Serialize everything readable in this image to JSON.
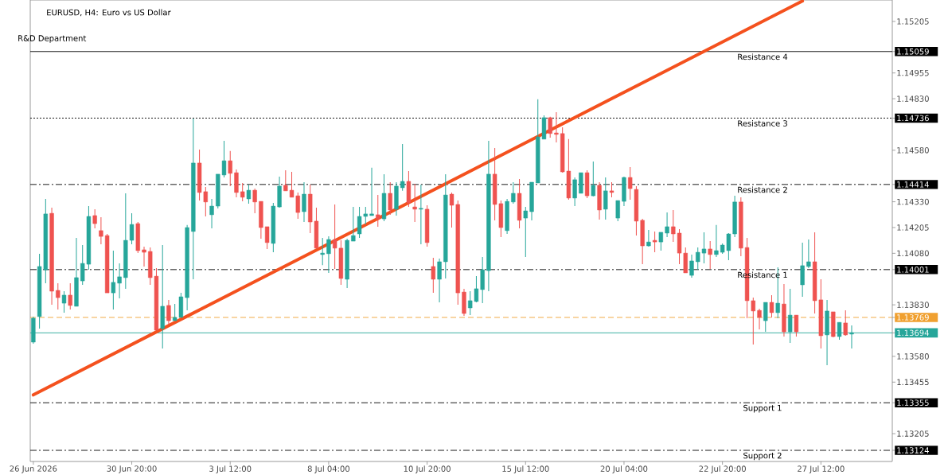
{
  "chart_data": {
    "type": "candlestick",
    "title": "EURUSD, H4: Euro vs US Dollar",
    "subtitle": "R&D Department",
    "categories": [
      "26 Jun 2026",
      null,
      null,
      null,
      null,
      null,
      null,
      null,
      null,
      null,
      null,
      null,
      null,
      null,
      null,
      null,
      "30 Jun 20:00",
      null,
      null,
      null,
      null,
      null,
      null,
      null,
      null,
      null,
      null,
      null,
      null,
      null,
      null,
      null,
      "3 Jul 12:00",
      null,
      null,
      null,
      null,
      null,
      null,
      null,
      null,
      null,
      null,
      null,
      null,
      null,
      null,
      null,
      "8 Jul 04:00",
      null,
      null,
      null,
      null,
      null,
      null,
      null,
      null,
      null,
      null,
      null,
      null,
      null,
      null,
      null,
      "10 Jul 20:00",
      null,
      null,
      null,
      null,
      null,
      null,
      null,
      null,
      null,
      null,
      null,
      null,
      null,
      null,
      null,
      "15 Jul 12:00",
      null,
      null,
      null,
      null,
      null,
      null,
      null,
      null,
      null,
      null,
      null,
      null,
      null,
      null,
      null,
      "20 Jul 04:00",
      null,
      null,
      null,
      null,
      null,
      null,
      null,
      null,
      null,
      null,
      null,
      null,
      null,
      null,
      null,
      "22 Jul 20:00",
      null,
      null,
      null,
      null,
      null,
      null,
      null,
      null,
      null,
      null,
      null,
      null,
      null,
      null,
      null,
      "27 Jul 12:00",
      null,
      null,
      null,
      null,
      null
    ],
    "ohlc": [
      [
        1.13649,
        1.13773,
        1.13641,
        1.13765
      ],
      [
        1.13773,
        1.14078,
        1.13715,
        1.14016
      ],
      [
        1.14,
        1.14344,
        1.13935,
        1.14271
      ],
      [
        1.14274,
        1.14301,
        1.1383,
        1.13896
      ],
      [
        1.139,
        1.13935,
        1.13807,
        1.13865
      ],
      [
        1.13838,
        1.13896,
        1.13792,
        1.13877
      ],
      [
        1.13877,
        1.13935,
        1.13807,
        1.13827
      ],
      [
        1.13823,
        1.14155,
        1.13823,
        1.13962
      ],
      [
        1.13946,
        1.1412,
        1.13927,
        1.14031
      ],
      [
        1.14027,
        1.14309,
        1.14,
        1.14259
      ],
      [
        1.14263,
        1.14294,
        1.14201,
        1.14224
      ],
      [
        1.1419,
        1.14255,
        1.14124,
        1.14162
      ],
      [
        1.14166,
        1.14174,
        1.13888,
        1.13888
      ],
      [
        1.13888,
        1.14093,
        1.13807,
        1.13939
      ],
      [
        1.13935,
        1.14031,
        1.13861,
        1.13966
      ],
      [
        1.13962,
        1.14371,
        1.13908,
        1.14143
      ],
      [
        1.14143,
        1.14274,
        1.14124,
        1.1422
      ],
      [
        1.14224,
        1.14232,
        1.14081,
        1.14093
      ],
      [
        1.14097,
        1.14112,
        1.14016,
        1.14085
      ],
      [
        1.14089,
        1.14108,
        1.13927,
        1.13962
      ],
      [
        1.13969,
        1.14008,
        1.13707,
        1.13707
      ],
      [
        1.13715,
        1.1412,
        1.13618,
        1.13823
      ],
      [
        1.13827,
        1.13854,
        1.13734,
        1.13753
      ],
      [
        1.13753,
        1.13834,
        1.13753,
        1.13769
      ],
      [
        1.13769,
        1.13888,
        1.13769,
        1.13869
      ],
      [
        1.13865,
        1.14217,
        1.13803,
        1.14205
      ],
      [
        1.14186,
        1.14734,
        1.13954,
        1.14518
      ],
      [
        1.14518,
        1.14583,
        1.14336,
        1.14375
      ],
      [
        1.14379,
        1.14402,
        1.14259,
        1.14329
      ],
      [
        1.14267,
        1.14344,
        1.14201,
        1.14309
      ],
      [
        1.14309,
        1.14464,
        1.14298,
        1.14464
      ],
      [
        1.1446,
        1.14626,
        1.14448,
        1.14529
      ],
      [
        1.14529,
        1.14576,
        1.14406,
        1.14468
      ],
      [
        1.14471,
        1.14487,
        1.14352,
        1.14375
      ],
      [
        1.14379,
        1.14421,
        1.14332,
        1.14352
      ],
      [
        1.14344,
        1.14413,
        1.14321,
        1.14386
      ],
      [
        1.14386,
        1.14394,
        1.14274,
        1.14329
      ],
      [
        1.14332,
        1.14332,
        1.14151,
        1.14205
      ],
      [
        1.14209,
        1.14209,
        1.14101,
        1.14132
      ],
      [
        1.14128,
        1.14325,
        1.14085,
        1.14309
      ],
      [
        1.14305,
        1.14452,
        1.14301,
        1.14406
      ],
      [
        1.1441,
        1.14483,
        1.14383,
        1.14383
      ],
      [
        1.14386,
        1.14475,
        1.14352,
        1.14352
      ],
      [
        1.14359,
        1.14375,
        1.14247,
        1.14278
      ],
      [
        1.14282,
        1.14425,
        1.14232,
        1.14367
      ],
      [
        1.14367,
        1.14413,
        1.14178,
        1.14232
      ],
      [
        1.14236,
        1.14301,
        1.14105,
        1.14105
      ],
      [
        1.14074,
        1.14155,
        1.14023,
        1.14081
      ],
      [
        1.14078,
        1.14162,
        1.13985,
        1.14147
      ],
      [
        1.14147,
        1.14317,
        1.14004,
        1.14105
      ],
      [
        1.14105,
        1.14143,
        1.13927,
        1.13958
      ],
      [
        1.13954,
        1.14151,
        1.13912,
        1.14143
      ],
      [
        1.14139,
        1.14305,
        1.14139,
        1.14166
      ],
      [
        1.14174,
        1.14305,
        1.14155,
        1.14259
      ],
      [
        1.14259,
        1.14305,
        1.1422,
        1.14271
      ],
      [
        1.14263,
        1.14495,
        1.14263,
        1.14271
      ],
      [
        1.14267,
        1.14363,
        1.14209,
        1.14247
      ],
      [
        1.14247,
        1.14464,
        1.14236,
        1.14371
      ],
      [
        1.14371,
        1.14425,
        1.14267,
        1.1429
      ],
      [
        1.14294,
        1.14425,
        1.14263,
        1.14406
      ],
      [
        1.14398,
        1.1461,
        1.14383,
        1.14429
      ],
      [
        1.14429,
        1.14479,
        1.14305,
        1.14325
      ],
      [
        1.14305,
        1.14417,
        1.14232,
        1.14294
      ],
      [
        1.14294,
        1.14413,
        1.14124,
        1.14298
      ],
      [
        1.14294,
        1.14313,
        1.14112,
        1.14132
      ],
      [
        1.14016,
        1.14058,
        1.13888,
        1.13954
      ],
      [
        1.13954,
        1.14054,
        1.13842,
        1.14039
      ],
      [
        1.14039,
        1.14464,
        1.13958,
        1.14363
      ],
      [
        1.14367,
        1.14375,
        1.14205,
        1.14313
      ],
      [
        1.14317,
        1.14336,
        1.1383,
        1.13888
      ],
      [
        1.13892,
        1.13908,
        1.13776,
        1.13788
      ],
      [
        1.13815,
        1.13896,
        1.1378,
        1.1385
      ],
      [
        1.13846,
        1.13969,
        1.13842,
        1.13908
      ],
      [
        1.13904,
        1.14062,
        1.13838,
        1.14
      ],
      [
        1.13996,
        1.14626,
        1.13896,
        1.14464
      ],
      [
        1.14464,
        1.14591,
        1.1424,
        1.14317
      ],
      [
        1.14321,
        1.14336,
        1.14159,
        1.14205
      ],
      [
        1.1419,
        1.14344,
        1.14174,
        1.14332
      ],
      [
        1.14329,
        1.14425,
        1.14321,
        1.14371
      ],
      [
        1.14371,
        1.1444,
        1.14201,
        1.1424
      ],
      [
        1.14251,
        1.14305,
        1.14062,
        1.14286
      ],
      [
        1.14282,
        1.14425,
        1.1424,
        1.14425
      ],
      [
        1.14421,
        1.14827,
        1.14421,
        1.14645
      ],
      [
        1.14634,
        1.14749,
        1.14634,
        1.14738
      ],
      [
        1.14738,
        1.14742,
        1.14641,
        1.14661
      ],
      [
        1.14664,
        1.14765,
        1.14618,
        1.14657
      ],
      [
        1.14661,
        1.14691,
        1.14471,
        1.14475
      ],
      [
        1.14479,
        1.14634,
        1.1434,
        1.14348
      ],
      [
        1.14348,
        1.14448,
        1.14309,
        1.14437
      ],
      [
        1.14371,
        1.14471,
        1.14371,
        1.14471
      ],
      [
        1.14471,
        1.14483,
        1.14348,
        1.14359
      ],
      [
        1.14359,
        1.14525,
        1.14356,
        1.1441
      ],
      [
        1.1441,
        1.14425,
        1.14244,
        1.1429
      ],
      [
        1.14294,
        1.14448,
        1.14244,
        1.14383
      ],
      [
        1.14383,
        1.14425,
        1.14352,
        1.14375
      ],
      [
        1.14251,
        1.14336,
        1.14236,
        1.14336
      ],
      [
        1.14332,
        1.14452,
        1.14309,
        1.14448
      ],
      [
        1.14448,
        1.14498,
        1.1434,
        1.14394
      ],
      [
        1.1439,
        1.14406,
        1.14166,
        1.14236
      ],
      [
        1.1424,
        1.14247,
        1.14027,
        1.14116
      ],
      [
        1.14116,
        1.14193,
        1.14112,
        1.14135
      ],
      [
        1.14143,
        1.14186,
        1.14085,
        1.14135
      ],
      [
        1.14135,
        1.14182,
        1.14093,
        1.14182
      ],
      [
        1.14178,
        1.14278,
        1.14159,
        1.14209
      ],
      [
        1.14209,
        1.1429,
        1.14135,
        1.14174
      ],
      [
        1.14178,
        1.14197,
        1.14027,
        1.14081
      ],
      [
        1.14081,
        1.14108,
        1.13985,
        1.13985
      ],
      [
        1.13973,
        1.14074,
        1.13962,
        1.14043
      ],
      [
        1.14039,
        1.14108,
        1.14,
        1.14085
      ],
      [
        1.14081,
        1.14182,
        1.14031,
        1.14101
      ],
      [
        1.14101,
        1.14139,
        1.14004,
        1.14074
      ],
      [
        1.14074,
        1.14217,
        1.14062,
        1.14093
      ],
      [
        1.14085,
        1.14128,
        1.14078,
        1.1412
      ],
      [
        1.14093,
        1.14178,
        1.14047,
        1.14174
      ],
      [
        1.14174,
        1.14359,
        1.14159,
        1.14329
      ],
      [
        1.14329,
        1.14352,
        1.14066,
        1.14105
      ],
      [
        1.14108,
        1.14155,
        1.13765,
        1.1385
      ],
      [
        1.1385,
        1.13865,
        1.13637,
        1.138
      ],
      [
        1.13803,
        1.13811,
        1.13711,
        1.13769
      ],
      [
        1.13753,
        1.13842,
        1.13699,
        1.13842
      ],
      [
        1.13842,
        1.13877,
        1.13769,
        1.13792
      ],
      [
        1.13792,
        1.14012,
        1.13765,
        1.13838
      ],
      [
        1.13834,
        1.13931,
        1.13676,
        1.13699
      ],
      [
        1.13699,
        1.13908,
        1.13645,
        1.1378
      ],
      [
        1.1378,
        1.1378,
        1.13676,
        1.13699
      ],
      [
        1.13927,
        1.14132,
        1.13869,
        1.1402
      ],
      [
        1.14016,
        1.14147,
        1.14008,
        1.14039
      ],
      [
        1.14039,
        1.14182,
        1.13788,
        1.1385
      ],
      [
        1.13854,
        1.13954,
        1.13618,
        1.1368
      ],
      [
        1.13684,
        1.13854,
        1.13537,
        1.138
      ],
      [
        1.13796,
        1.13796,
        1.13672,
        1.13676
      ],
      [
        1.13676,
        1.13745,
        1.13661,
        1.13745
      ],
      [
        1.13742,
        1.13803,
        1.1368,
        1.13684
      ],
      [
        1.13688,
        1.1373,
        1.13618,
        1.13695
      ]
    ],
    "colors": [
      "#26a69a",
      "#26a69a",
      "#26a69a",
      "#ef5350",
      "#ef5350",
      "#26a69a",
      "#ef5350",
      "#26a69a",
      "#26a69a",
      "#26a69a",
      "#ef5350",
      "#ef5350",
      "#ef5350",
      "#26a69a",
      "#26a69a",
      "#26a69a",
      "#26a69a",
      "#ef5350",
      "#ef5350",
      "#ef5350",
      "#ef5350",
      "#26a69a",
      "#ef5350",
      "#26a69a",
      "#26a69a",
      "#26a69a",
      "#26a69a",
      "#ef5350",
      "#ef5350",
      "#26a69a",
      "#26a69a",
      "#26a69a",
      "#ef5350",
      "#ef5350",
      "#ef5350",
      "#26a69a",
      "#ef5350",
      "#ef5350",
      "#ef5350",
      "#26a69a",
      "#26a69a",
      "#ef5350",
      "#ef5350",
      "#ef5350",
      "#26a69a",
      "#ef5350",
      "#ef5350",
      "#26a69a",
      "#26a69a",
      "#ef5350",
      "#ef5350",
      "#26a69a",
      "#26a69a",
      "#26a69a",
      "#26a69a",
      "#26a69a",
      "#ef5350",
      "#26a69a",
      "#ef5350",
      "#26a69a",
      "#26a69a",
      "#ef5350",
      "#ef5350",
      "#26a69a",
      "#ef5350",
      "#ef5350",
      "#26a69a",
      "#26a69a",
      "#ef5350",
      "#ef5350",
      "#ef5350",
      "#26a69a",
      "#26a69a",
      "#26a69a",
      "#26a69a",
      "#ef5350",
      "#ef5350",
      "#26a69a",
      "#26a69a",
      "#ef5350",
      "#26a69a",
      "#26a69a",
      "#26a69a",
      "#26a69a",
      "#ef5350",
      "#ef5350",
      "#ef5350",
      "#ef5350",
      "#26a69a",
      "#26a69a",
      "#ef5350",
      "#26a69a",
      "#ef5350",
      "#26a69a",
      "#ef5350",
      "#26a69a",
      "#26a69a",
      "#ef5350",
      "#ef5350",
      "#ef5350",
      "#26a69a",
      "#ef5350",
      "#26a69a",
      "#26a69a",
      "#ef5350",
      "#ef5350",
      "#ef5350",
      "#26a69a",
      "#26a69a",
      "#26a69a",
      "#ef5350",
      "#26a69a",
      "#26a69a",
      "#26a69a",
      "#26a69a",
      "#ef5350",
      "#ef5350",
      "#ef5350",
      "#ef5350",
      "#26a69a",
      "#ef5350",
      "#26a69a",
      "#ef5350",
      "#26a69a",
      "#ef5350",
      "#26a69a",
      "#26a69a",
      "#ef5350",
      "#ef5350",
      "#26a69a",
      "#ef5350",
      "#26a69a",
      "#ef5350",
      "#26a69a"
    ],
    "series": [
      {
        "type": "line",
        "color": "#f4511e",
        "values": [
          1.13393,
          null,
          null,
          null,
          null,
          null,
          null,
          null,
          null,
          null,
          null,
          null,
          null,
          null,
          null,
          null,
          null,
          null,
          null,
          null,
          null,
          null,
          null,
          null,
          null,
          1.13775,
          null,
          null,
          null,
          null,
          null,
          null,
          null,
          null,
          null,
          null,
          null,
          null,
          null,
          null,
          null,
          null,
          null,
          null,
          null,
          null,
          null,
          null,
          null,
          null,
          1.14157,
          null,
          null,
          null,
          null,
          null,
          null,
          null,
          null,
          null,
          null,
          null,
          null,
          null,
          null,
          null,
          null,
          null,
          null,
          null,
          null,
          null,
          null,
          null,
          null,
          1.1454,
          null,
          null,
          null,
          null,
          null,
          null,
          null,
          null,
          null,
          null,
          null,
          null,
          null,
          null,
          null,
          null,
          null,
          null,
          null,
          null,
          null,
          null,
          null,
          null,
          1.14922,
          null,
          null,
          null,
          null,
          null,
          null,
          null,
          null,
          null,
          null,
          null,
          null,
          null,
          null,
          null,
          null,
          null,
          null,
          null,
          null,
          null,
          null,
          null,
          null,
          1.15304,
          null,
          null,
          null,
          null,
          null,
          null,
          null,
          null
        ]
      }
    ],
    "ylim": [
      1.1307,
      1.15309
    ],
    "yticks": [
      1.15205,
      1.15059,
      1.14955,
      {
        "value": 1.1483,
        "label": "1.14830"
      },
      1.14736,
      {
        "value": 1.1458,
        "label": "1.14580"
      },
      1.14414,
      {
        "value": 1.1433,
        "label": "1.14330"
      },
      1.14205,
      {
        "value": 1.1408,
        "label": "1.14080"
      },
      1.14001,
      {
        "value": 1.1383,
        "label": "1.13830"
      },
      1.13769,
      1.13694,
      {
        "value": 1.1358,
        "label": "1.13580"
      },
      1.13455,
      1.13355,
      1.13205,
      1.13124
    ],
    "ref_lines": [
      {
        "axis": "y",
        "value": 1.15059,
        "label": "Resistance 4",
        "color": "#000000",
        "line_style": "solid"
      },
      {
        "axis": "y",
        "value": 1.14736,
        "label": "Resistance 3",
        "color": "#000000",
        "line_style": "dotted"
      },
      {
        "axis": "y",
        "value": 1.14414,
        "label": "Resistance 2",
        "color": "#000000",
        "line_style": "dashdot"
      },
      {
        "axis": "y",
        "value": 1.14001,
        "label": "Resistance 1",
        "color": "#000000",
        "line_style": "dashdot"
      },
      {
        "axis": "y",
        "value": 1.13769,
        "color": "#f0a030",
        "line_style": "dashed"
      },
      {
        "axis": "y",
        "value": 1.13694,
        "color": "#26a69a",
        "line_style": "solid"
      },
      {
        "axis": "y",
        "value": 1.13355,
        "label": "Support 1",
        "color": "#000000",
        "line_style": "dashdot"
      },
      {
        "axis": "y",
        "value": 1.13124,
        "label": "Support 2",
        "color": "#000000",
        "line_style": "dashdot"
      }
    ]
  }
}
